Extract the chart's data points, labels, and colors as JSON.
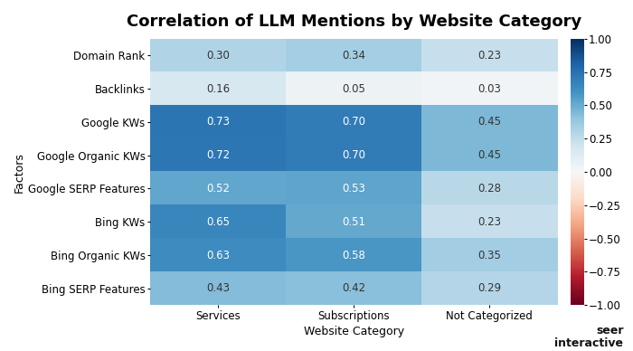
{
  "title": "Correlation of LLM Mentions by Website Category",
  "xlabel": "Website Category",
  "ylabel": "Factors",
  "rows": [
    "Domain Rank",
    "Backlinks",
    "Google KWs",
    "Google Organic KWs",
    "Google SERP Features",
    "Bing KWs",
    "Bing Organic KWs",
    "Bing SERP Features"
  ],
  "cols": [
    "Services",
    "Subscriptions",
    "Not Categorized"
  ],
  "data": [
    [
      0.3,
      0.34,
      0.23
    ],
    [
      0.16,
      0.05,
      0.03
    ],
    [
      0.73,
      0.7,
      0.45
    ],
    [
      0.72,
      0.7,
      0.45
    ],
    [
      0.52,
      0.53,
      0.28
    ],
    [
      0.65,
      0.51,
      0.23
    ],
    [
      0.63,
      0.58,
      0.35
    ],
    [
      0.43,
      0.42,
      0.29
    ]
  ],
  "cmap": "RdBu",
  "vmin": -1.0,
  "vmax": 1.0,
  "colorbar_ticks": [
    1.0,
    0.75,
    0.5,
    0.25,
    0.0,
    -0.25,
    -0.5,
    -0.75,
    -1.0
  ],
  "colorbar_tick_labels": [
    "1.00",
    "0.75",
    "0.50",
    "0.25",
    "0.00",
    "−0.25",
    "−0.50",
    "−0.75",
    "−1.00"
  ],
  "title_fontsize": 13,
  "label_fontsize": 9,
  "tick_fontsize": 8.5,
  "cell_text_fontsize": 8.5,
  "background_color": "#ffffff",
  "text_color_dark": "#333333",
  "text_color_light": "#ffffff",
  "seer_text_line1": "seer",
  "seer_text_line2": "interactive",
  "figsize": [
    7.0,
    3.88
  ],
  "dpi": 100
}
